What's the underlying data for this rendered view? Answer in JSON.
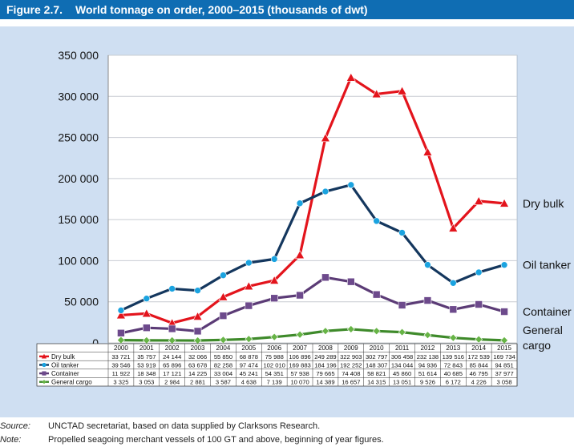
{
  "figure": {
    "number": "Figure 2.7.",
    "title": "World tonnage on order, 2000–2015 (thousands of dwt)"
  },
  "chart_data": {
    "type": "line",
    "title": "World tonnage on order, 2000–2015 (thousands of dwt)",
    "xlabel": "",
    "ylabel": "",
    "ylim": [
      0,
      350000
    ],
    "yticks": [
      "0",
      "50 000",
      "100 000",
      "150 000",
      "200 000",
      "250 000",
      "300 000",
      "350 000"
    ],
    "categories": [
      "2000",
      "2001",
      "2002",
      "2003",
      "2004",
      "2005",
      "2006",
      "2007",
      "2008",
      "2009",
      "2010",
      "2011",
      "2012",
      "2013",
      "2014",
      "2015"
    ],
    "series": [
      {
        "name": "Dry bulk",
        "end_label": "Dry bulk",
        "color": "#e3141c",
        "marker": "triangle",
        "values": [
          33721,
          35757,
          24144,
          32066,
          55850,
          68878,
          75988,
          106896,
          249289,
          322903,
          302797,
          306458,
          232138,
          139516,
          172539,
          169734
        ],
        "labels": [
          "33 721",
          "35 757",
          "24 144",
          "32 066",
          "55 850",
          "68 878",
          "75 988",
          "106 896",
          "249 289",
          "322 903",
          "302 797",
          "306 458",
          "232 138",
          "139 516",
          "172 539",
          "169 734"
        ]
      },
      {
        "name": "Oil tanker",
        "end_label": "Oil tanker",
        "color": "#14375e",
        "marker": "circle",
        "values": [
          39546,
          53919,
          65896,
          63678,
          82258,
          97474,
          102010,
          169883,
          184196,
          192252,
          148307,
          134044,
          94936,
          72843,
          85844,
          94851
        ],
        "labels": [
          "39 546",
          "53 919",
          "65 896",
          "63 678",
          "82 258",
          "97 474",
          "102 010",
          "169 883",
          "184 196",
          "192 252",
          "148 307",
          "134 044",
          "94 936",
          "72 843",
          "85 844",
          "94 851"
        ]
      },
      {
        "name": "Container",
        "end_label": "Container",
        "color": "#5b3b76",
        "marker": "square",
        "values": [
          11922,
          18348,
          17121,
          14225,
          33004,
          45241,
          54351,
          57938,
          79665,
          74408,
          58821,
          45860,
          51614,
          40685,
          46795,
          37977
        ],
        "labels": [
          "11 922",
          "18 348",
          "17 121",
          "14 225",
          "33 004",
          "45 241",
          "54 351",
          "57 938",
          "79 665",
          "74 408",
          "58 821",
          "45 860",
          "51 614",
          "40 685",
          "46 795",
          "37 977"
        ]
      },
      {
        "name": "General cargo",
        "end_label": "General\ncargo",
        "color": "#3e8a2a",
        "marker": "diamond",
        "values": [
          3325,
          3053,
          2984,
          2881,
          3587,
          4638,
          7139,
          10070,
          14389,
          16657,
          14315,
          13051,
          9526,
          6172,
          4226,
          3058
        ],
        "labels": [
          "3 325",
          "3 053",
          "2 984",
          "2 881",
          "3 587",
          "4 638",
          "7 139",
          "10 070",
          "14 389",
          "16 657",
          "14 315",
          "13 051",
          "9 526",
          "6 172",
          "4 226",
          "3 058"
        ]
      }
    ]
  },
  "footer": {
    "source_label": "Source:",
    "source_text": "UNCTAD secretariat, based on data supplied by Clarksons Research.",
    "note_label": "Note:",
    "note_text": "Propelled seagoing merchant vessels of 100 GT and above, beginning of year figures."
  }
}
